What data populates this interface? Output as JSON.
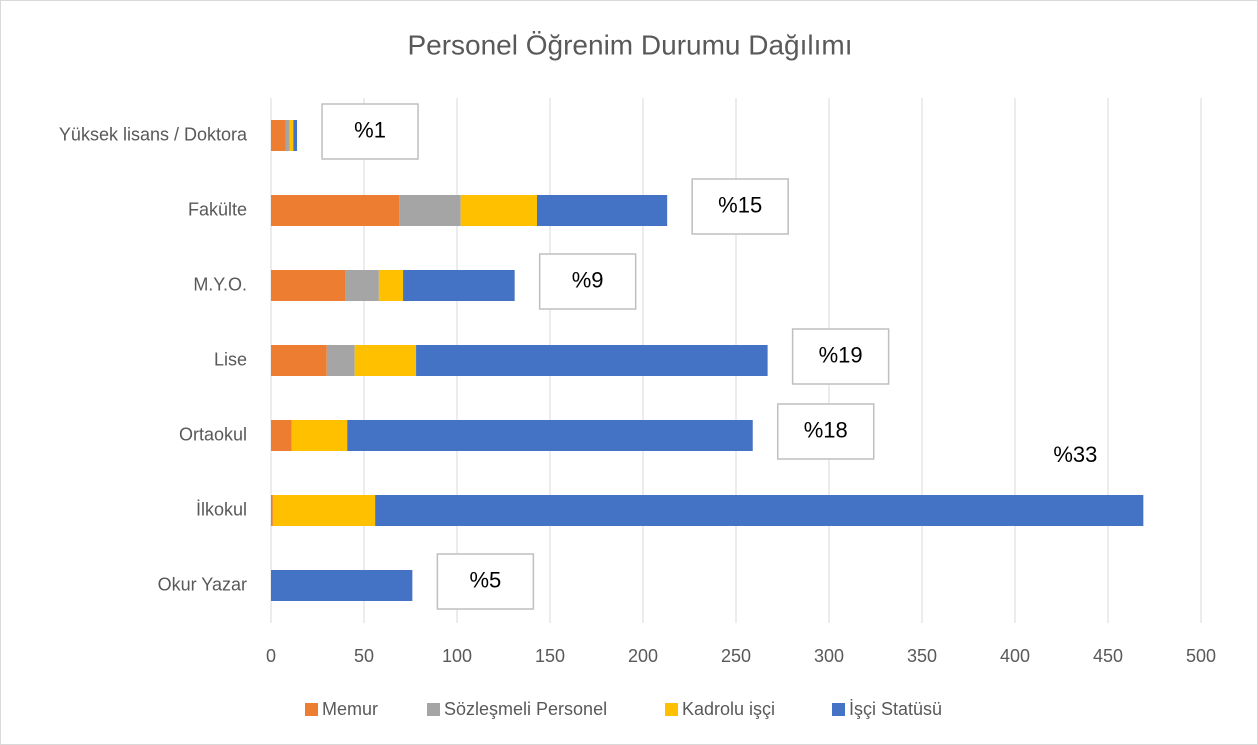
{
  "chart_data": {
    "type": "stacked_barh",
    "title": "Personel Öğrenim Durumu Dağılımı",
    "categories": [
      "Yüksek lisans / Doktora",
      "Fakülte",
      "M.Y.O.",
      "Lise",
      "Ortaokul",
      "İlkokul",
      "Okur  Yazar"
    ],
    "series": [
      {
        "name": "Memur",
        "color": "#ed7d31",
        "values": [
          8,
          69,
          40,
          30,
          11,
          1,
          0
        ]
      },
      {
        "name": "Sözleşmeli Personel",
        "color": "#a5a5a5",
        "values": [
          2,
          33,
          18,
          15,
          0,
          0,
          0
        ]
      },
      {
        "name": "Kadrolu işçi",
        "color": "#ffc000",
        "values": [
          2,
          41,
          13,
          33,
          30,
          55,
          0
        ]
      },
      {
        "name": "İşçi Statüsü",
        "color": "#4472c4",
        "values": [
          2,
          70,
          60,
          189,
          218,
          413,
          76
        ]
      }
    ],
    "annotations": [
      "%1",
      "%15",
      "%9",
      "%19",
      "%18",
      "%33",
      "%5"
    ],
    "xlim": [
      0,
      500
    ],
    "xticks": [
      0,
      50,
      100,
      150,
      200,
      250,
      300,
      350,
      400,
      450,
      500
    ],
    "grid": true,
    "legend": "bottom"
  }
}
